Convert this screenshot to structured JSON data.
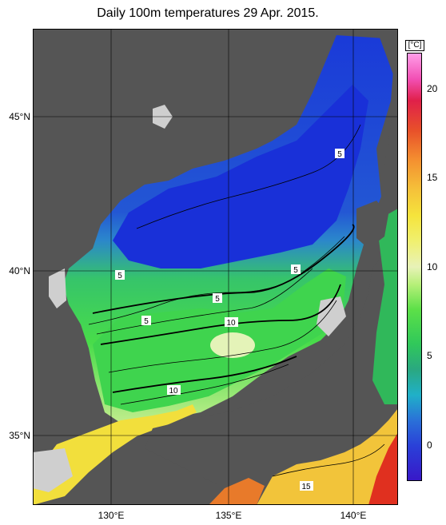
{
  "title": "Daily 100m temperatures 29 Apr. 2015.",
  "map": {
    "lat_labels": [
      "45°N",
      "40°N",
      "35°N"
    ],
    "lon_labels": [
      "130°E",
      "135°E",
      "140°E"
    ],
    "contour_labels": [
      "5",
      "5",
      "5",
      "5",
      "5",
      "10",
      "10",
      "15"
    ],
    "colors": {
      "land": "#555555",
      "no_data": "#cfcfcf",
      "cold": "#1c3fd6",
      "mid": "#2f8fcf",
      "warm": "#3fd24f",
      "hot": "#f0e14a",
      "very_hot": "#e02a20"
    }
  },
  "colorbar": {
    "unit": "[°C]",
    "ticks": [
      "20",
      "15",
      "10",
      "5",
      "0"
    ],
    "range": [
      -1.5,
      22
    ]
  }
}
